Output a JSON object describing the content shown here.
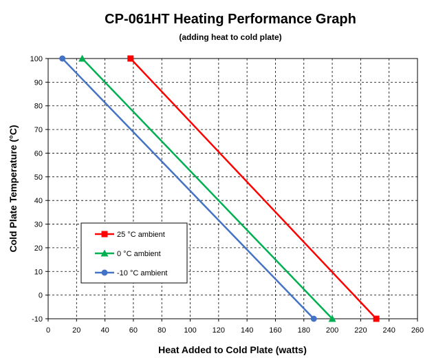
{
  "chart_data": {
    "type": "line",
    "title": "CP-061HT Heating Performance Graph",
    "subtitle": "(adding heat to cold plate)",
    "xlabel": "Heat Added to Cold Plate (watts)",
    "ylabel": "Cold Plate Temperature (°C)",
    "xlim": [
      0,
      260
    ],
    "ylim": [
      -10,
      100
    ],
    "xticks": [
      0,
      20,
      40,
      60,
      80,
      100,
      120,
      140,
      160,
      180,
      200,
      220,
      240,
      260
    ],
    "yticks": [
      -10,
      0,
      10,
      20,
      30,
      40,
      50,
      60,
      70,
      80,
      90,
      100
    ],
    "grid": true,
    "legend_position": "lower-left",
    "series": [
      {
        "name": "25 °C ambient",
        "color": "#ff0000",
        "marker": "square",
        "x": [
          58,
          231
        ],
        "y": [
          100,
          -10
        ]
      },
      {
        "name": "0 °C ambient",
        "color": "#00b050",
        "marker": "triangle",
        "x": [
          24,
          200
        ],
        "y": [
          100,
          -10
        ]
      },
      {
        "name": "-10 °C ambient",
        "color": "#4472c4",
        "marker": "circle",
        "x": [
          10,
          187
        ],
        "y": [
          100,
          -10
        ]
      }
    ]
  }
}
